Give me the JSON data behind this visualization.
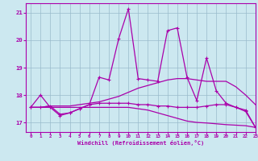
{
  "bg_color": "#cce8f0",
  "line_color": "#aa00aa",
  "grid_color": "#99bbcc",
  "xlim": [
    -0.5,
    23
  ],
  "ylim": [
    16.65,
    21.35
  ],
  "yticks": [
    17,
    18,
    19,
    20,
    21
  ],
  "xticks": [
    0,
    1,
    2,
    3,
    4,
    5,
    6,
    7,
    8,
    9,
    10,
    11,
    12,
    13,
    14,
    15,
    16,
    17,
    18,
    19,
    20,
    21,
    22,
    23
  ],
  "xlabel": "Windchill (Refroidissement éolien,°C)",
  "series_no_marker": [
    [
      17.55,
      17.55,
      17.55,
      17.55,
      17.55,
      17.55,
      17.55,
      17.55,
      17.55,
      17.55,
      17.55,
      17.5,
      17.45,
      17.35,
      17.25,
      17.15,
      17.05,
      17.0,
      16.98,
      16.95,
      16.92,
      16.9,
      16.88,
      16.82
    ],
    [
      17.55,
      17.55,
      17.6,
      17.6,
      17.6,
      17.65,
      17.7,
      17.75,
      17.85,
      17.95,
      18.1,
      18.25,
      18.35,
      18.45,
      18.55,
      18.6,
      18.6,
      18.55,
      18.5,
      18.5,
      18.5,
      18.3,
      18.0,
      17.65
    ]
  ],
  "series_with_marker": [
    [
      17.55,
      17.55,
      17.6,
      17.3,
      17.35,
      17.5,
      17.65,
      17.7,
      17.7,
      17.7,
      17.7,
      17.65,
      17.65,
      17.6,
      17.6,
      17.55,
      17.55,
      17.55,
      17.6,
      17.65,
      17.65,
      17.55,
      17.45,
      16.82
    ],
    [
      17.55,
      18.0,
      17.55,
      17.25,
      17.35,
      17.5,
      17.65,
      18.65,
      18.55,
      20.05,
      21.15,
      18.6,
      18.55,
      18.5,
      20.35,
      20.45,
      18.65,
      17.8,
      19.35,
      18.15,
      17.7,
      17.55,
      17.4,
      16.82
    ]
  ]
}
